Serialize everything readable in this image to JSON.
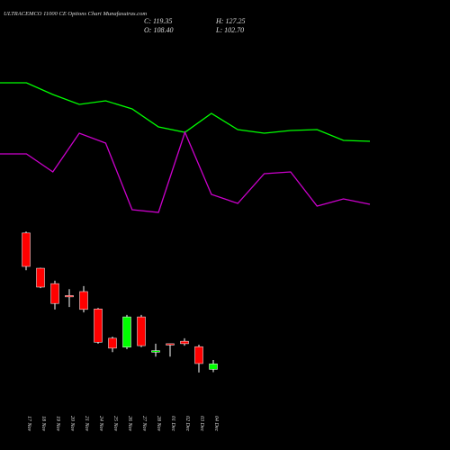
{
  "chart_data": [
    {
      "type": "line",
      "title": "ULTRACEMCO 11000 CE Options Chart Munafasutras.com",
      "info": [
        "C: 119.35",
        "H: 127.25",
        "O: 108.40",
        "L: 102.70"
      ],
      "ylim": [
        0,
        500
      ],
      "series": [
        {
          "color": "#00ff00",
          "values": [
            408,
            408,
            395,
            384,
            388,
            379,
            359,
            353,
            374,
            356,
            352,
            355,
            356,
            344,
            343
          ]
        },
        {
          "color": "#cc00cc",
          "values": [
            329,
            329,
            309,
            352,
            341,
            267,
            264,
            353,
            284,
            274,
            307,
            309,
            271,
            279,
            273
          ]
        }
      ]
    },
    {
      "type": "candlestick",
      "categories": [
        "17 Nov",
        "18 Nov",
        "19 Nov",
        "20 Nov",
        "21 Nov",
        "24 Nov",
        "25 Nov",
        "26 Nov",
        "27 Nov",
        "28 Nov",
        "01 Dec",
        "02 Dec",
        "03 Dec",
        "04 Dec"
      ],
      "ylim": [
        100,
        390
      ],
      "up_color": "#00ff00",
      "down_color": "#ff0000",
      "open": [
        383,
        312,
        281,
        257,
        265,
        230,
        171,
        153,
        214,
        143,
        160,
        165,
        154,
        108.4
      ],
      "high": [
        386,
        313,
        287,
        270,
        276,
        232,
        174,
        218,
        218,
        160,
        160,
        171,
        158,
        127.25
      ],
      "low": [
        308,
        272,
        229,
        234,
        223,
        160,
        143,
        149,
        153,
        134,
        134,
        156,
        102,
        102.7
      ],
      "close": [
        315.6,
        274,
        241,
        255,
        229,
        163,
        151,
        214,
        156,
        146,
        158,
        160,
        120,
        119.35
      ]
    }
  ]
}
